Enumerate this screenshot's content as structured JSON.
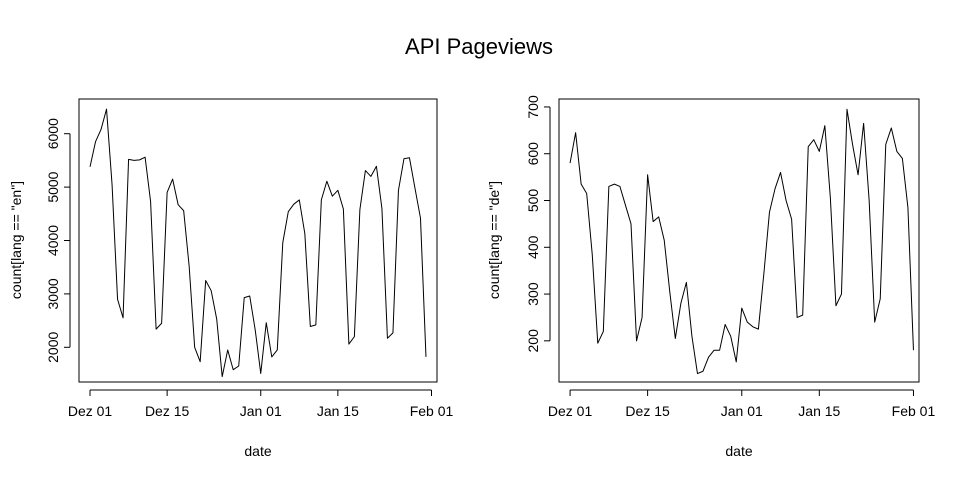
{
  "figure_title": "API Pageviews",
  "chart_data": [
    {
      "type": "line",
      "xlabel": "date",
      "ylabel": "count[lang == \"en\"]",
      "x_start": "2016-12-01",
      "x_ticks": [
        {
          "label": "Dez 01",
          "date": "2016-12-01"
        },
        {
          "label": "Dez 15",
          "date": "2016-12-15"
        },
        {
          "label": "Jan 01",
          "date": "2017-01-01"
        },
        {
          "label": "Jan 15",
          "date": "2017-01-15"
        },
        {
          "label": "Feb 01",
          "date": "2017-02-01"
        }
      ],
      "y_ticks": [
        2000,
        3000,
        4000,
        5000,
        6000
      ],
      "xlim": [
        "2016-11-29",
        "2017-02-02"
      ],
      "ylim": [
        1350,
        6650
      ],
      "series": [
        {
          "values": [
            5380,
            5850,
            6080,
            6460,
            5050,
            2900,
            2550,
            5520,
            5500,
            5510,
            5560,
            4730,
            2340,
            2450,
            4900,
            5150,
            4670,
            4560,
            3520,
            2000,
            1730,
            3250,
            3060,
            2530,
            1450,
            1950,
            1580,
            1650,
            2930,
            2960,
            2320,
            1510,
            2460,
            1820,
            1950,
            3960,
            4540,
            4680,
            4760,
            4130,
            2390,
            2420,
            4760,
            5110,
            4830,
            4940,
            4590,
            2060,
            2200,
            4580,
            5310,
            5200,
            5390,
            4600,
            2170,
            2270,
            4940,
            5530,
            5550,
            4980,
            4420,
            1820
          ]
        }
      ]
    },
    {
      "type": "line",
      "xlabel": "date",
      "ylabel": "count[lang == \"de\"]",
      "x_start": "2016-12-01",
      "x_ticks": [
        {
          "label": "Dez 01",
          "date": "2016-12-01"
        },
        {
          "label": "Dez 15",
          "date": "2016-12-15"
        },
        {
          "label": "Jan 01",
          "date": "2017-01-01"
        },
        {
          "label": "Jan 15",
          "date": "2017-01-15"
        },
        {
          "label": "Feb 01",
          "date": "2017-02-01"
        }
      ],
      "y_ticks": [
        200,
        300,
        400,
        500,
        600,
        700
      ],
      "xlim": [
        "2016-11-29",
        "2017-02-02"
      ],
      "ylim": [
        112,
        717
      ],
      "series": [
        {
          "values": [
            580,
            645,
            535,
            515,
            385,
            195,
            220,
            530,
            535,
            530,
            490,
            450,
            200,
            250,
            555,
            455,
            465,
            415,
            305,
            205,
            280,
            325,
            210,
            130,
            135,
            165,
            180,
            180,
            235,
            210,
            155,
            270,
            240,
            230,
            225,
            345,
            475,
            525,
            560,
            500,
            460,
            250,
            255,
            615,
            630,
            605,
            660,
            505,
            275,
            300,
            695,
            620,
            555,
            665,
            500,
            240,
            290,
            620,
            655,
            605,
            590,
            485,
            180
          ]
        }
      ]
    }
  ]
}
